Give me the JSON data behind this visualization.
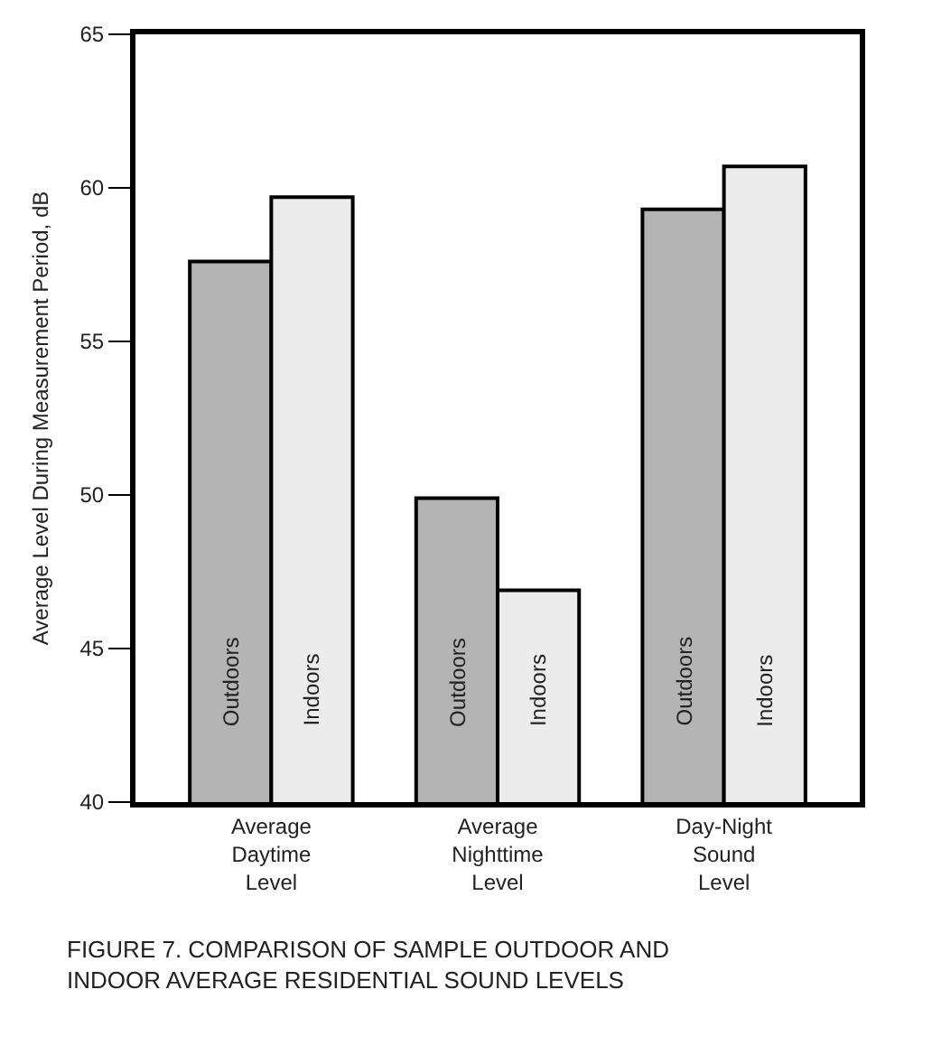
{
  "chart_data": {
    "type": "bar",
    "ylabel": "Average Level During Measurement Period, dB",
    "categories": [
      "Average\nDaytime\nLevel",
      "Average\nNighttime\nLevel",
      "Day-Night\nSound\nLevel"
    ],
    "series": [
      {
        "name": "Outdoors",
        "color": "#b4b4b4",
        "values": [
          57.6,
          49.9,
          59.3
        ]
      },
      {
        "name": "Indoors",
        "color": "#ececec",
        "values": [
          59.7,
          46.9,
          60.7
        ]
      }
    ],
    "ylim": [
      40,
      65
    ],
    "yticks": [
      40,
      45,
      50,
      55,
      60,
      65
    ],
    "legend": false,
    "annotations": [
      "FIGURE 7. COMPARISON OF SAMPLE OUTDOOR AND\nINDOOR AVERAGE RESIDENTIAL SOUND LEVELS"
    ]
  }
}
